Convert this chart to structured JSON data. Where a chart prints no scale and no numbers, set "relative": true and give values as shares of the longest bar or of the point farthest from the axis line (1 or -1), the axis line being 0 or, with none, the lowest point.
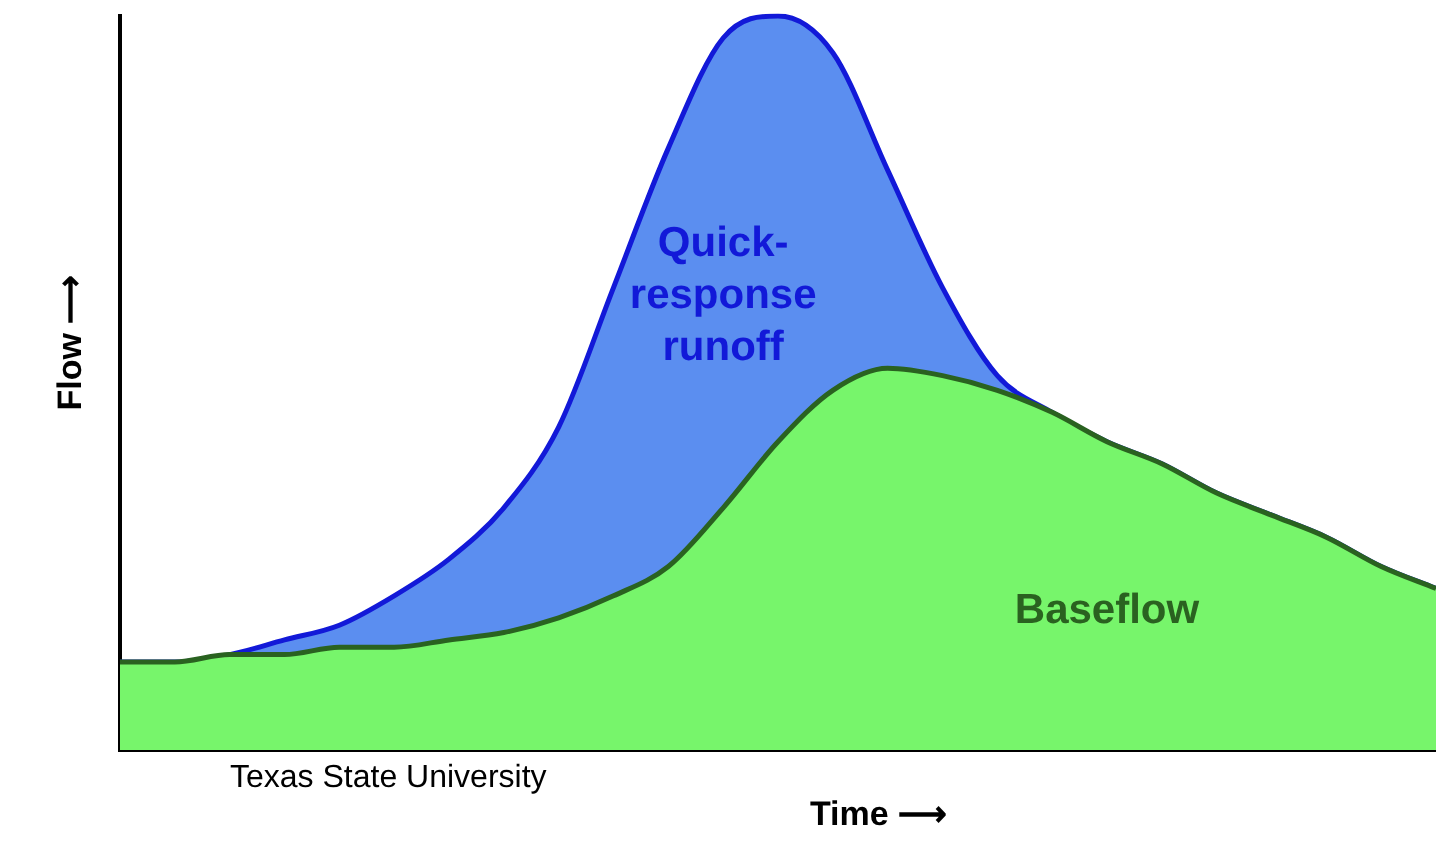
{
  "chart_data": {
    "type": "area",
    "relative": true,
    "stacked": true,
    "xlabel": "Time ⟶",
    "ylabel": "Flow ⟶",
    "grid": false,
    "legend": false,
    "marker": "none",
    "categories": [
      null,
      null,
      null,
      null,
      null,
      null,
      null,
      null,
      null,
      null,
      null,
      null,
      null,
      null,
      null,
      null,
      null,
      null,
      null,
      null,
      null,
      null,
      null,
      null,
      null
    ],
    "series": [
      {
        "name": "Baseflow",
        "color": "#77f56b",
        "values": [
          0.12,
          0.12,
          0.13,
          0.13,
          0.14,
          0.14,
          0.15,
          0.16,
          0.18,
          0.21,
          0.25,
          0.33,
          0.42,
          0.49,
          0.52,
          0.51,
          0.49,
          0.46,
          0.42,
          0.39,
          0.35,
          0.32,
          0.29,
          0.25,
          0.22
        ]
      },
      {
        "name": "Quick-response runoff",
        "color": "#5b8ef0",
        "values": [
          0,
          0,
          0,
          0.02,
          0.03,
          0.07,
          0.11,
          0.17,
          0.26,
          0.42,
          0.57,
          0.64,
          0.58,
          0.46,
          0.27,
          0.12,
          0.02,
          0,
          0,
          0,
          0,
          0,
          0,
          0,
          0
        ]
      }
    ],
    "annotations": [
      "Texas State University"
    ]
  }
}
